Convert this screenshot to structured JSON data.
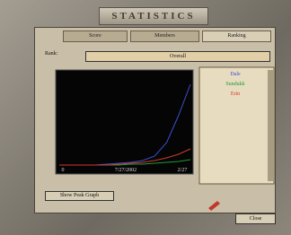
{
  "header": {
    "title": "STATISTICS"
  },
  "tabs": [
    "Score",
    "Members",
    "Ranking"
  ],
  "rank": {
    "label": "Rank:",
    "selected": "Overall"
  },
  "chart_data": {
    "type": "line",
    "x_labels": [
      "0",
      "7/27/2002",
      "2/27"
    ],
    "ylim": [
      0,
      100
    ],
    "series": [
      {
        "name": "Dale",
        "color": "#3a4fd0",
        "values": [
          0,
          0,
          0,
          0,
          1,
          2,
          3,
          5,
          10,
          25,
          55,
          90
        ]
      },
      {
        "name": "Sundukk",
        "color": "#1e9a3a",
        "values": [
          0,
          0,
          0,
          0,
          0,
          0,
          1,
          1,
          2,
          3,
          4,
          6
        ]
      },
      {
        "name": "Erin",
        "color": "#d23a2a",
        "values": [
          0,
          0,
          0,
          0,
          0,
          1,
          2,
          3,
          5,
          8,
          12,
          18
        ]
      }
    ]
  },
  "buttons": {
    "peak": "Show Peak Graph",
    "close": "Close"
  }
}
